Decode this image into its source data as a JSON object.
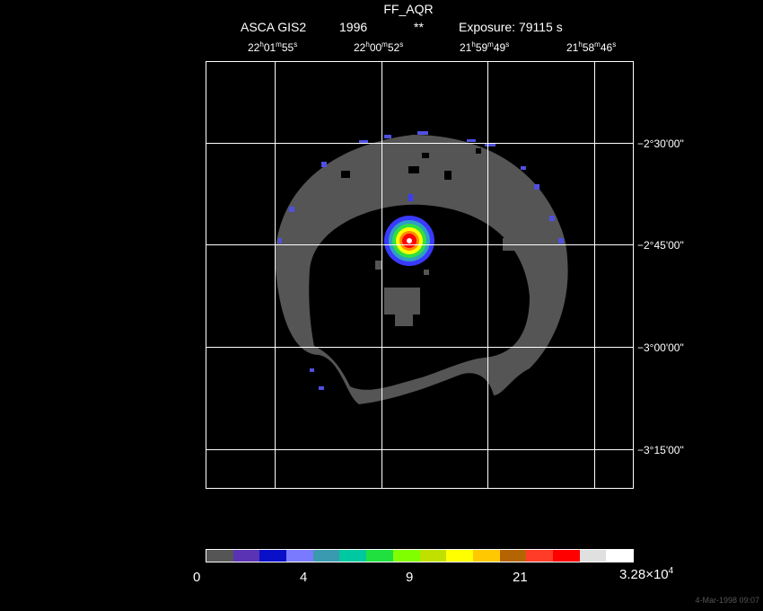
{
  "header": {
    "object": "FF_AQR",
    "telescope": "ASCA GIS2",
    "year": "1996",
    "stars": "**",
    "exposure": "Exposure: 79115 s"
  },
  "ra_ticks": [
    {
      "h": "22",
      "hu": "h",
      "m": "01",
      "mu": "m",
      "s": "55",
      "su": "s"
    },
    {
      "h": "22",
      "hu": "h",
      "m": "00",
      "mu": "m",
      "s": "52",
      "su": "s"
    },
    {
      "h": "21",
      "hu": "h",
      "m": "59",
      "mu": "m",
      "s": "49",
      "su": "s"
    },
    {
      "h": "21",
      "hu": "h",
      "m": "58",
      "mu": "m",
      "s": "46",
      "su": "s"
    }
  ],
  "dec_ticks": [
    "−2°30'00\"",
    "−2°45'00\"",
    "−3°00'00\"",
    "−3°15'00\""
  ],
  "colorbar": {
    "colors": [
      "#555555",
      "#5a32b4",
      "#0a10c8",
      "#7a7aff",
      "#3a9ab0",
      "#00c8a0",
      "#20e040",
      "#80ff00",
      "#c0e000",
      "#ffff00",
      "#ffc800",
      "#b46400",
      "#ff3c28",
      "#ff0000",
      "#e0e0e0",
      "#ffffff"
    ],
    "labels": [
      "0",
      "4",
      "9",
      "21"
    ],
    "max_label": "3.28×10",
    "max_exp": "4"
  },
  "timestamp": "4-Mar-1998 09:07"
}
